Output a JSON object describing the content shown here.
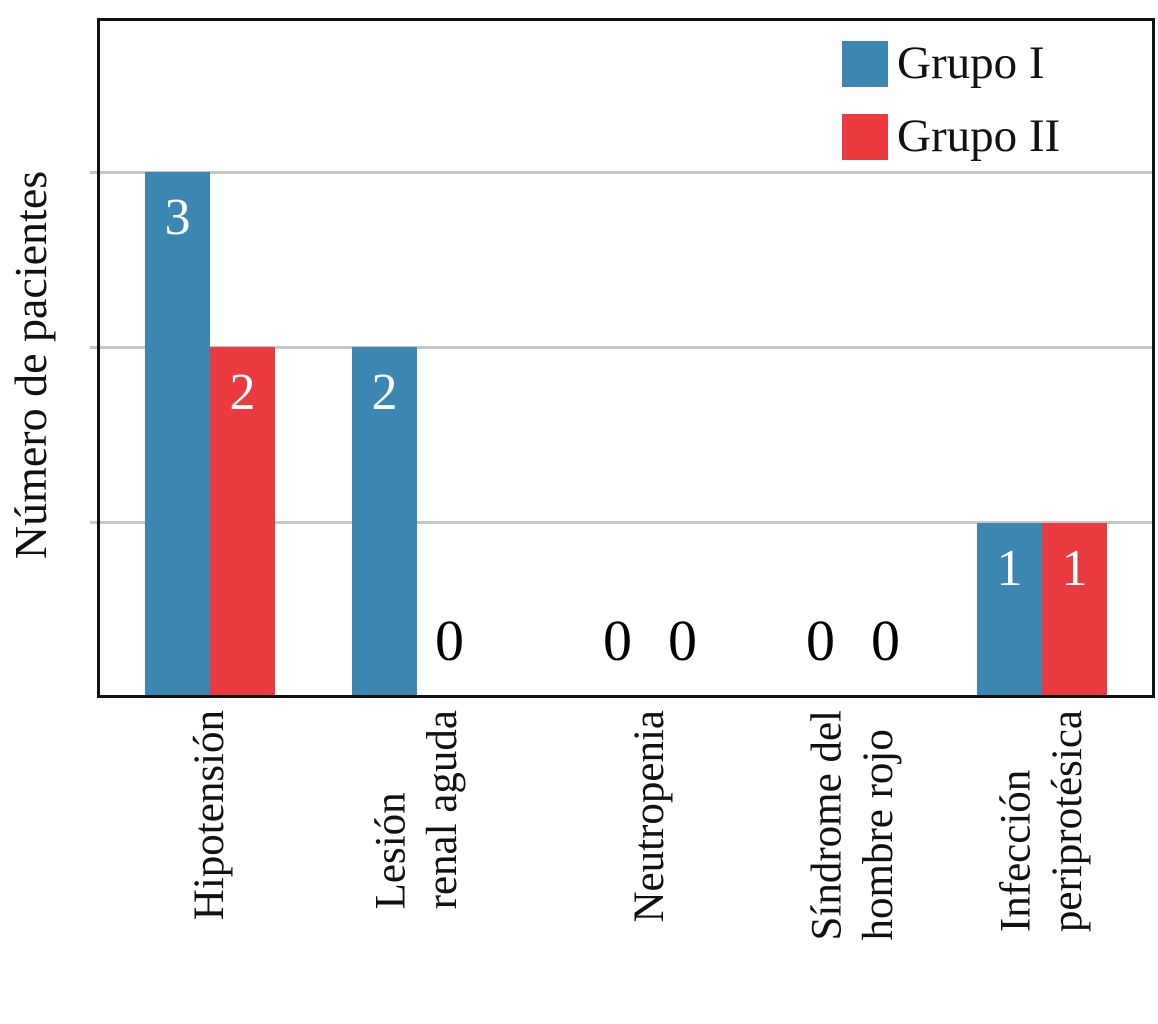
{
  "chart": {
    "y_axis_title": "Número de pacientes",
    "legend": {
      "items": [
        {
          "label": "Grupo I",
          "color": "#3C87B2"
        },
        {
          "label": "Grupo II",
          "color": "#EC3B40"
        }
      ]
    }
  },
  "chart_data": {
    "type": "bar",
    "title": "",
    "xlabel": "",
    "ylabel": "Número de pacientes",
    "categories": [
      "Hipotensión",
      "Lesión renal aguda",
      "Neutropenia",
      "Síndrome del hombre rojo",
      "Infección periprotésica"
    ],
    "category_label_lines": [
      [
        "Hipotensión"
      ],
      [
        "Lesión",
        "renal aguda"
      ],
      [
        "Neutropenia"
      ],
      [
        "Síndrome del",
        "hombre rojo"
      ],
      [
        "Infección",
        "periprotésica"
      ]
    ],
    "series": [
      {
        "name": "Grupo I",
        "color": "#3C87B2",
        "values": [
          3,
          2,
          0,
          0,
          1
        ]
      },
      {
        "name": "Grupo II",
        "color": "#EC3B40",
        "values": [
          2,
          0,
          0,
          0,
          1
        ]
      }
    ],
    "ylim": [
      0,
      4
    ],
    "gridline_values": [
      1,
      2,
      3
    ],
    "grid": true,
    "y_tick_labels_shown": false,
    "legend_position": "top-right",
    "bar_value_labels": true,
    "value_label_color_on_bar": "#FFFFFF",
    "value_label_color_zero": "#000000",
    "gridline_color": "#C7C7C7",
    "axis_color": "#111111"
  }
}
